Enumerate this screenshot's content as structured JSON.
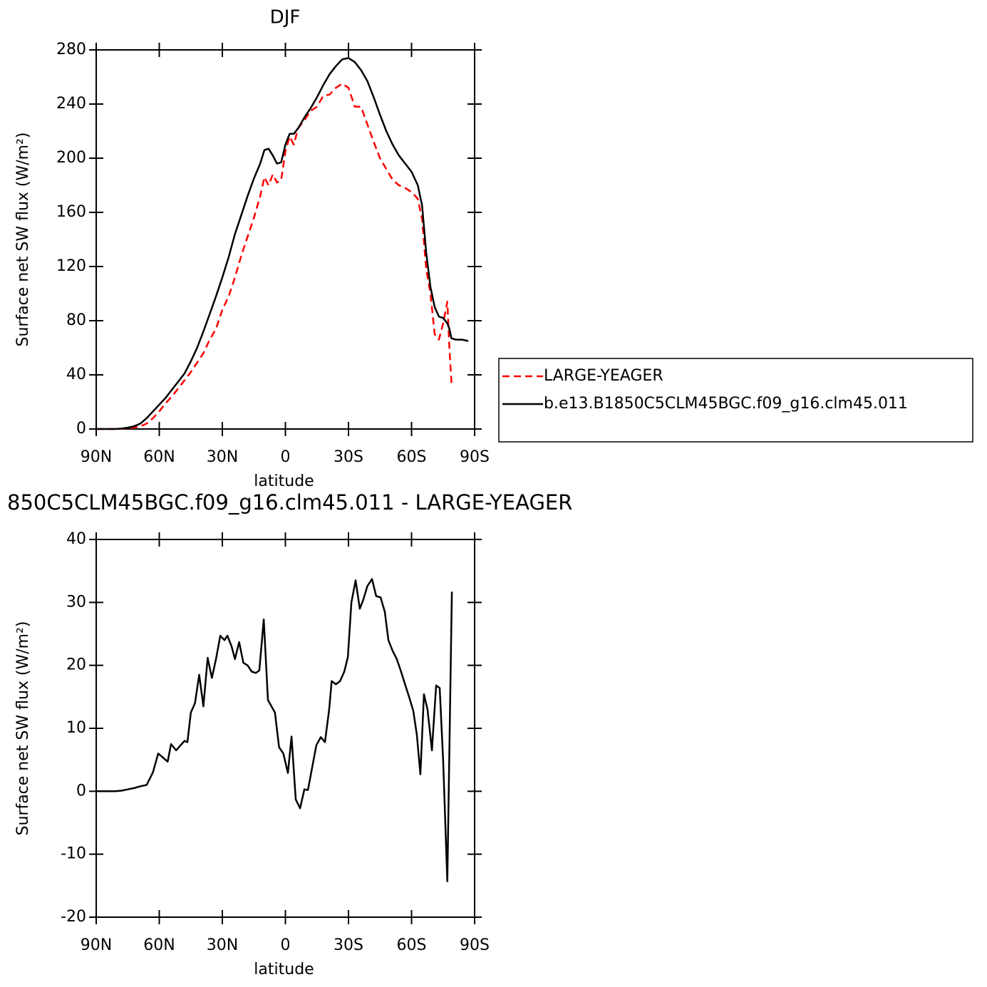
{
  "chart_data": [
    {
      "type": "line",
      "title": "DJF",
      "xlabel": "latitude",
      "ylabel": "Surface net SW flux (W/m²)",
      "x": [
        90,
        87,
        84,
        81,
        78,
        75,
        72,
        69,
        66,
        63,
        60,
        57,
        54,
        51,
        48,
        45,
        42,
        39,
        36,
        33,
        30,
        27,
        24,
        21,
        18,
        15,
        12,
        10,
        8,
        6,
        4,
        2,
        0,
        -2,
        -4,
        -6,
        -9,
        -12,
        -15,
        -18,
        -21,
        -24,
        -27,
        -30,
        -33,
        -36,
        -39,
        -42,
        -45,
        -48,
        -51,
        -54,
        -57,
        -60,
        -63,
        -65,
        -67,
        -69,
        -71,
        -73,
        -75,
        -77,
        -78,
        -79,
        -81,
        -84,
        -87
      ],
      "series": [
        {
          "name": "LARGE-YEAGER",
          "color": "#ff0000",
          "dashed": true,
          "values": [
            0,
            0,
            0,
            0,
            0.2,
            0.5,
            1,
            2,
            4,
            8,
            13,
            19,
            24,
            30,
            36,
            42,
            49,
            56,
            66,
            74,
            88,
            98,
            112,
            128,
            142,
            156,
            172,
            186,
            180,
            188,
            182,
            184,
            205,
            216,
            210,
            222,
            228,
            235,
            238,
            246,
            247,
            252,
            255,
            252,
            238,
            238,
            225,
            212,
            200,
            192,
            184,
            180,
            178,
            175,
            170,
            155,
            118,
            100,
            70,
            66,
            78,
            94,
            60,
            34,
            null,
            null,
            null
          ]
        },
        {
          "name": "b.e13.B1850C5CLM45BGC.f09_g16.clm45.011",
          "color": "#000000",
          "dashed": false,
          "values": [
            0,
            0,
            0,
            0,
            0.3,
            1,
            2,
            4,
            8,
            13,
            18,
            23,
            29,
            35,
            41,
            50,
            60,
            72,
            85,
            98,
            112,
            127,
            144,
            158,
            172,
            185,
            196,
            206,
            207,
            202,
            196,
            197,
            210,
            218,
            218,
            222,
            230,
            237,
            245,
            254,
            262,
            268,
            273,
            274,
            271,
            265,
            257,
            245,
            232,
            220,
            210,
            202,
            196,
            190,
            180,
            165,
            130,
            105,
            90,
            83,
            82,
            78,
            74,
            67,
            66,
            66,
            65
          ]
        }
      ],
      "xlim": [
        90,
        -90
      ],
      "xticks": [
        {
          "value": 90,
          "label": "90N"
        },
        {
          "value": 60,
          "label": "60N"
        },
        {
          "value": 30,
          "label": "30N"
        },
        0,
        {
          "value": -30,
          "label": "30S"
        },
        {
          "value": -60,
          "label": "60S"
        },
        {
          "value": -90,
          "label": "90S"
        }
      ],
      "ylim": [
        0,
        280
      ],
      "yticks": [
        0,
        40,
        80,
        120,
        160,
        200,
        240,
        280
      ]
    },
    {
      "type": "line",
      "title": "850C5CLM45BGC.f09_g16.clm45.011 - LARGE-YEAGER",
      "xlabel": "latitude",
      "ylabel": "Surface net SW flux (W/m²)",
      "x": [
        90,
        87,
        84,
        81,
        78,
        75,
        72,
        69,
        66,
        63,
        60.5,
        56,
        54.4,
        52,
        48,
        46.6,
        45,
        43,
        41,
        39,
        37,
        35,
        33,
        31,
        29,
        27.6,
        25.6,
        24,
        22,
        20,
        18,
        16,
        14,
        12.4,
        10.3,
        8.3,
        5,
        3,
        1,
        -1.2,
        -2.9,
        -4.9,
        -7,
        -9,
        -10.7,
        -14.7,
        -16.8,
        -18.8,
        -20.8,
        -22,
        -24,
        -26,
        -28,
        -29.7,
        -31.4,
        -33.4,
        -35.4,
        -37,
        -39,
        -41.2,
        -43.2,
        -45.3,
        -47.3,
        -49,
        -51,
        -53,
        -55,
        -57,
        -58.8,
        -60.8,
        -62.5,
        -64.2,
        -65.9,
        -67.6,
        -69.7,
        -71.7,
        -73.4,
        -75,
        -77,
        -79.2
      ],
      "values": [
        0,
        0,
        0,
        0,
        0.1,
        0.3,
        0.5,
        0.8,
        1,
        3,
        6,
        4.7,
        7.5,
        6.5,
        8,
        7.8,
        12.5,
        14,
        18.5,
        13.5,
        21.2,
        18,
        21,
        24.7,
        24,
        24.7,
        23,
        21,
        23.7,
        20.4,
        20,
        19,
        18.8,
        19.2,
        27.3,
        14.5,
        12.5,
        7,
        6,
        2.9,
        8.7,
        -1.3,
        -2.7,
        0.3,
        0.2,
        7.3,
        8.6,
        7.8,
        13,
        17.5,
        17,
        17.5,
        19,
        21.3,
        30,
        33.5,
        29,
        30.4,
        32.6,
        33.7,
        31,
        30.8,
        28.5,
        24,
        22.3,
        21,
        19,
        16.9,
        15,
        12.8,
        9,
        2.7,
        15.4,
        13,
        6.5,
        16.8,
        16.4,
        5,
        -14.3,
        31.7
      ],
      "color": "#000000",
      "xlim": [
        90,
        -90
      ],
      "xticks": [
        {
          "value": 90,
          "label": "90N"
        },
        {
          "value": 60,
          "label": "60N"
        },
        {
          "value": 30,
          "label": "30N"
        },
        0,
        {
          "value": -30,
          "label": "30S"
        },
        {
          "value": -60,
          "label": "60S"
        },
        {
          "value": -90,
          "label": "90S"
        }
      ],
      "ylim": [
        -20,
        40
      ],
      "yticks": [
        -20,
        -10,
        0,
        10,
        20,
        30,
        40
      ]
    }
  ]
}
